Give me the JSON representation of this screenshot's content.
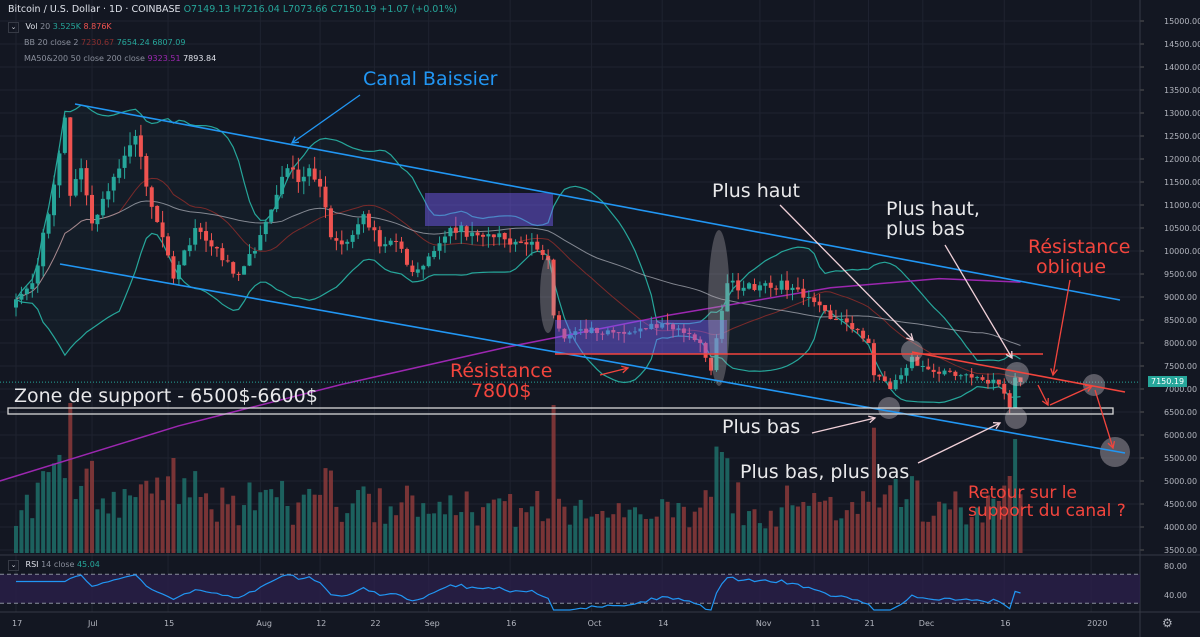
{
  "header": {
    "symbol": "Bitcoin / U.S. Dollar · 1D · COINBASE",
    "open": "O7149.13",
    "high": "H7216.04",
    "low": "L7073.66",
    "close": "C7150.19",
    "change": "+1.07 (+0.01%)"
  },
  "indicators": {
    "vol": {
      "label": "Vol",
      "params": "20",
      "v1": "3.525K",
      "v2": "8.876K"
    },
    "bb": {
      "label": "BB",
      "params": "20 close 2",
      "basis": "7230.67",
      "upper": "7654.24",
      "lower": "6807.09"
    },
    "ma": {
      "label": "MA50&200",
      "params": "50 close 200 close",
      "ma200": "9323.51",
      "ma50": "7893.84"
    },
    "rsi": {
      "label": "RSI",
      "params": "14 close",
      "value": "45.04"
    }
  },
  "price_tag": "7150.19",
  "annotations": {
    "canal": "Canal Baissier",
    "plus_haut": "Plus haut",
    "plus_haut_plus_bas_1": "Plus haut,",
    "plus_haut_plus_bas_2": "plus bas",
    "res_oblique_1": "Résistance",
    "res_oblique_2": "oblique",
    "res_7800_1": "Résistance",
    "res_7800_2": "7800$",
    "zone": "Zone de support - 6500$-6600$",
    "plus_bas": "Plus bas",
    "plus_bas_plus_bas": "Plus bas, plus bas",
    "retour_1": "Retour sur le",
    "retour_2": "support du canal ?"
  },
  "colors": {
    "bg": "#131722",
    "up": "#26a69a",
    "down": "#ef5350",
    "channel": "#2196f3",
    "resistance": "#f2453d",
    "ma200": "#9c27b0",
    "ma50": "#b2b5be",
    "bb": "#26a69a",
    "bb_basis": "#7a2a2a",
    "rsi": "#2196f3"
  },
  "chart_data": {
    "type": "candlestick",
    "title": "Bitcoin / U.S. Dollar · 1D · COINBASE",
    "ylim": [
      3500,
      15000
    ],
    "y_ticks": [
      "15000.00",
      "14500.00",
      "14000.00",
      "13500.00",
      "13000.00",
      "12500.00",
      "12000.00",
      "11500.00",
      "11000.00",
      "10500.00",
      "10000.00",
      "9500.00",
      "9000.00",
      "8500.00",
      "8000.00",
      "7500.00",
      "7000.00",
      "6500.00",
      "6000.00",
      "5500.00",
      "5000.00",
      "4500.00",
      "4000.00",
      "3500.00"
    ],
    "y_tick_values": [
      15000,
      14500,
      14000,
      13500,
      13000,
      12500,
      12000,
      11500,
      11000,
      10500,
      10000,
      9500,
      9000,
      8500,
      8000,
      7500,
      7000,
      6500,
      6000,
      5500,
      5000,
      4500,
      4000,
      3500
    ],
    "x_ticks": [
      {
        "label": "17",
        "day": 0
      },
      {
        "label": "Jul",
        "day": 14
      },
      {
        "label": "15",
        "day": 28
      },
      {
        "label": "Aug",
        "day": 45
      },
      {
        "label": "12",
        "day": 56
      },
      {
        "label": "22",
        "day": 66
      },
      {
        "label": "Sep",
        "day": 76
      },
      {
        "label": "16",
        "day": 91
      },
      {
        "label": "Oct",
        "day": 106
      },
      {
        "label": "14",
        "day": 119
      },
      {
        "label": "Nov",
        "day": 137
      },
      {
        "label": "11",
        "day": 147
      },
      {
        "label": "21",
        "day": 157
      },
      {
        "label": "Dec",
        "day": 167
      },
      {
        "label": "16",
        "day": 182
      },
      {
        "label": "2020",
        "day": 198
      }
    ],
    "close_keypoints": [
      [
        0,
        8950
      ],
      [
        3,
        9300
      ],
      [
        6,
        10800
      ],
      [
        9,
        12900
      ],
      [
        10,
        11200
      ],
      [
        12,
        11800
      ],
      [
        14,
        10600
      ],
      [
        17,
        11300
      ],
      [
        22,
        12500
      ],
      [
        24,
        11400
      ],
      [
        27,
        10300
      ],
      [
        29,
        9400
      ],
      [
        30,
        9700
      ],
      [
        33,
        10500
      ],
      [
        36,
        10100
      ],
      [
        38,
        9800
      ],
      [
        41,
        9500
      ],
      [
        44,
        10000
      ],
      [
        47,
        10900
      ],
      [
        50,
        11800
      ],
      [
        52,
        11500
      ],
      [
        54,
        11800
      ],
      [
        56,
        11400
      ],
      [
        58,
        10300
      ],
      [
        61,
        10200
      ],
      [
        64,
        10800
      ],
      [
        67,
        10100
      ],
      [
        70,
        10200
      ],
      [
        72,
        9700
      ],
      [
        74,
        9600
      ],
      [
        77,
        10000
      ],
      [
        80,
        10500
      ],
      [
        84,
        10400
      ],
      [
        88,
        10300
      ],
      [
        92,
        10200
      ],
      [
        95,
        10200
      ],
      [
        98,
        9800
      ],
      [
        99,
        8600
      ],
      [
        101,
        8100
      ],
      [
        104,
        8300
      ],
      [
        108,
        8200
      ],
      [
        112,
        8200
      ],
      [
        116,
        8300
      ],
      [
        120,
        8400
      ],
      [
        124,
        8200
      ],
      [
        126,
        8000
      ],
      [
        128,
        7400
      ],
      [
        130,
        8700
      ],
      [
        131,
        9300
      ],
      [
        134,
        9200
      ],
      [
        138,
        9300
      ],
      [
        143,
        9200
      ],
      [
        146,
        9000
      ],
      [
        149,
        8700
      ],
      [
        151,
        8500
      ],
      [
        154,
        8300
      ],
      [
        156,
        8100
      ],
      [
        157,
        8000
      ],
      [
        158,
        7300
      ],
      [
        161,
        7000
      ],
      [
        163,
        7300
      ],
      [
        165,
        7700
      ],
      [
        167,
        7500
      ],
      [
        171,
        7400
      ],
      [
        174,
        7300
      ],
      [
        178,
        7200
      ],
      [
        181,
        7100
      ],
      [
        182,
        6900
      ],
      [
        183,
        6600
      ],
      [
        184,
        7250
      ],
      [
        185,
        7150
      ]
    ],
    "ma200_keypoints": [
      [
        -3,
        5000
      ],
      [
        30,
        6200
      ],
      [
        60,
        7100
      ],
      [
        90,
        7900
      ],
      [
        120,
        8600
      ],
      [
        150,
        9200
      ],
      [
        170,
        9400
      ],
      [
        185,
        9323
      ]
    ],
    "rsi_levels": {
      "upper": 70,
      "lower": 30,
      "ticks": [
        "80.00",
        "40.00"
      ]
    }
  }
}
